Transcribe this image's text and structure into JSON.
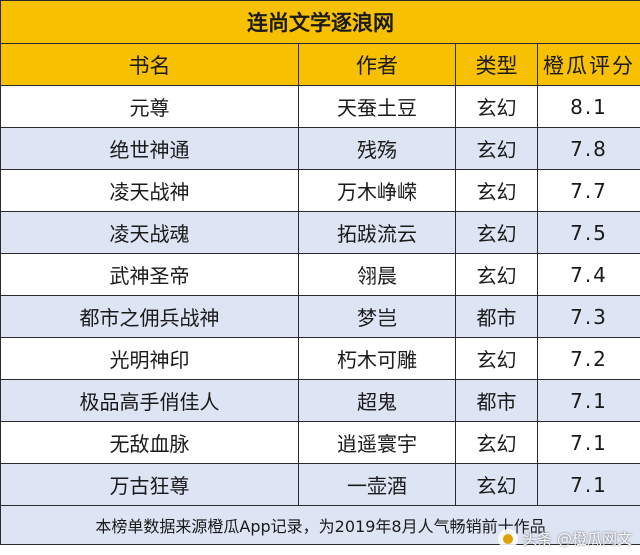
{
  "title": "连尚文学逐浪网",
  "headers": [
    "书名",
    "作者",
    "类型",
    "橙瓜评分"
  ],
  "rows": [
    {
      "book": "元尊",
      "author": "天蚕土豆",
      "genre": "玄幻",
      "score": "8.1"
    },
    {
      "book": "绝世神通",
      "author": "残殇",
      "genre": "玄幻",
      "score": "7.8"
    },
    {
      "book": "凌天战神",
      "author": "万木峥嵘",
      "genre": "玄幻",
      "score": "7.7"
    },
    {
      "book": "凌天战魂",
      "author": "拓跋流云",
      "genre": "玄幻",
      "score": "7.5"
    },
    {
      "book": "武神圣帝",
      "author": "翎晨",
      "genre": "玄幻",
      "score": "7.4"
    },
    {
      "book": "都市之佣兵战神",
      "author": "梦岂",
      "genre": "都市",
      "score": "7.3"
    },
    {
      "book": "光明神印",
      "author": "朽木可雕",
      "genre": "玄幻",
      "score": "7.2"
    },
    {
      "book": "极品高手俏佳人",
      "author": "超鬼",
      "genre": "都市",
      "score": "7.1"
    },
    {
      "book": "无敌血脉",
      "author": "逍遥寰宇",
      "genre": "玄幻",
      "score": "7.1"
    },
    {
      "book": "万古狂尊",
      "author": "一壶酒",
      "genre": "玄幻",
      "score": "7.1"
    }
  ],
  "footer": "本榜单数据来源橙瓜App记录，为2019年8月人气畅销前十作品",
  "watermark": "头条 @橙瓜网文",
  "colors": {
    "header_bg": "#f7c000",
    "stripe_bg": "#dde4f3",
    "border": "#2b2b2b"
  }
}
